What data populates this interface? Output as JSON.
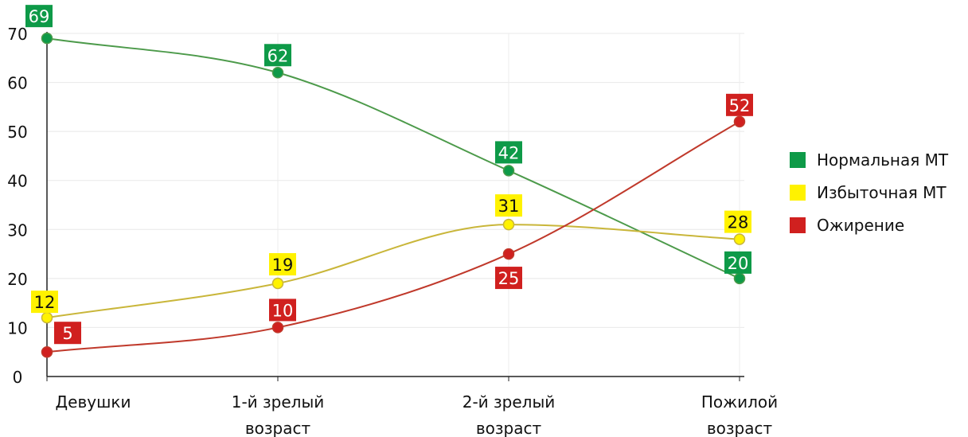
{
  "chart_data": {
    "type": "line",
    "categories": [
      [
        "Девушки"
      ],
      [
        "1-й зрелый",
        "возраст"
      ],
      [
        "2-й зрелый",
        "возраст"
      ],
      [
        "Пожилой",
        "возраст"
      ]
    ],
    "series": [
      {
        "name": "Нормальная МТ",
        "values": [
          69,
          62,
          42,
          20
        ],
        "color": "#0e9a48",
        "line": "#4c9a4a",
        "label_text": "#ffffff"
      },
      {
        "name": "Избыточная МТ",
        "values": [
          12,
          19,
          31,
          28
        ],
        "color": "#fff200",
        "line": "#c9b63a",
        "label_text": "#111111"
      },
      {
        "name": "Ожирение",
        "values": [
          5,
          10,
          25,
          52
        ],
        "color": "#d0201f",
        "line": "#c0392b",
        "label_text": "#ffffff"
      }
    ],
    "y_ticks": [
      0,
      10,
      20,
      30,
      40,
      50,
      60,
      70
    ],
    "ylim": [
      0,
      70
    ],
    "grid": true,
    "legend_position": "right"
  }
}
